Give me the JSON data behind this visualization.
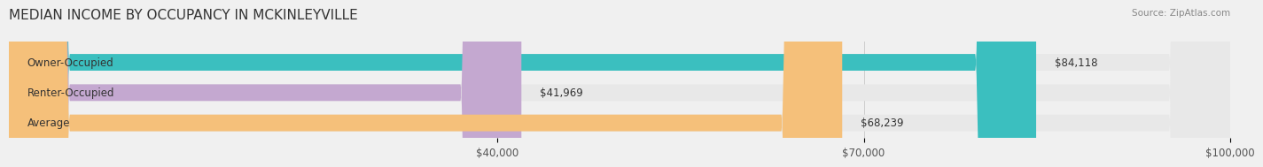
{
  "title": "MEDIAN INCOME BY OCCUPANCY IN MCKINLEYVILLE",
  "source": "Source: ZipAtlas.com",
  "categories": [
    "Owner-Occupied",
    "Renter-Occupied",
    "Average"
  ],
  "values": [
    84118,
    41969,
    68239
  ],
  "bar_colors": [
    "#3bbfbf",
    "#c4a8d0",
    "#f5c07a"
  ],
  "bar_labels": [
    "$84,118",
    "$41,969",
    "$68,239"
  ],
  "xlim": [
    0,
    100000
  ],
  "xticks": [
    40000,
    70000,
    100000
  ],
  "xtick_labels": [
    "$40,000",
    "$70,000",
    "$100,000"
  ],
  "background_color": "#f0f0f0",
  "bar_bg_color": "#e8e8e8",
  "title_fontsize": 11,
  "label_fontsize": 8.5,
  "bar_height": 0.55,
  "figsize": [
    14.06,
    1.96
  ]
}
